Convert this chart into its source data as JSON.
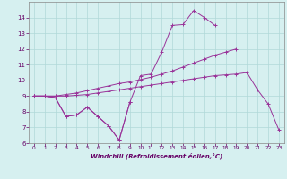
{
  "xlabel": "Windchill (Refroidissement éolien,°C)",
  "x_values": [
    0,
    1,
    2,
    3,
    4,
    5,
    6,
    7,
    8,
    9,
    10,
    11,
    12,
    13,
    14,
    15,
    16,
    17,
    18,
    19,
    20,
    21,
    22,
    23
  ],
  "line_jagged_short": [
    9.0,
    9.0,
    8.9,
    7.7,
    7.8,
    8.3,
    7.7,
    7.1,
    6.2,
    8.6,
    null,
    null,
    null,
    null,
    null,
    null,
    null,
    null,
    null,
    null,
    null,
    null,
    null,
    null
  ],
  "line_jagged_long": [
    9.0,
    9.0,
    8.9,
    7.7,
    7.8,
    8.3,
    7.7,
    7.1,
    6.2,
    8.6,
    10.3,
    10.4,
    11.8,
    13.5,
    13.55,
    14.45,
    14.0,
    13.5,
    null,
    null,
    null,
    null,
    null,
    null
  ],
  "line_upper_diag": [
    9.0,
    9.0,
    9.0,
    9.1,
    9.2,
    9.35,
    9.5,
    9.65,
    9.8,
    9.9,
    10.05,
    10.2,
    10.4,
    10.6,
    10.85,
    11.1,
    11.35,
    11.6,
    11.8,
    12.0,
    null,
    null,
    null,
    null
  ],
  "line_lower_diag": [
    9.0,
    9.0,
    9.0,
    9.0,
    9.05,
    9.1,
    9.2,
    9.3,
    9.4,
    9.5,
    9.6,
    9.7,
    9.8,
    9.9,
    10.0,
    10.1,
    10.2,
    10.3,
    10.35,
    10.4,
    10.5,
    9.4,
    8.5,
    6.85
  ],
  "ylim": [
    6,
    15
  ],
  "xlim": [
    -0.5,
    23.5
  ],
  "yticks": [
    6,
    7,
    8,
    9,
    10,
    11,
    12,
    13,
    14
  ],
  "xticks": [
    0,
    1,
    2,
    3,
    4,
    5,
    6,
    7,
    8,
    9,
    10,
    11,
    12,
    13,
    14,
    15,
    16,
    17,
    18,
    19,
    20,
    21,
    22,
    23
  ],
  "line_color": "#993399",
  "bg_color": "#d6f0f0",
  "grid_color": "#b0d8d8",
  "tick_color": "#660066",
  "label_color": "#660066"
}
